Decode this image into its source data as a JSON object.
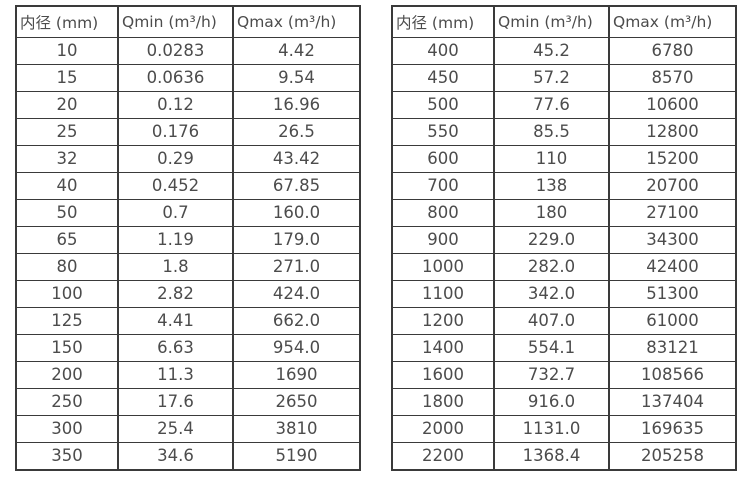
{
  "style": {
    "border_color": "#3a3a3a",
    "text_color": "#4c4c4c",
    "background": "#ffffff"
  },
  "tables": [
    {
      "name": "small-diameter-flow-spec-table",
      "headers": [
        "内径 (mm)",
        "Qmin (m³/h)",
        "Qmax (m³/h)"
      ],
      "rows": [
        [
          "10",
          "0.0283",
          "4.42"
        ],
        [
          "15",
          "0.0636",
          "9.54"
        ],
        [
          "20",
          "0.12",
          "16.96"
        ],
        [
          "25",
          "0.176",
          "26.5"
        ],
        [
          "32",
          "0.29",
          "43.42"
        ],
        [
          "40",
          "0.452",
          "67.85"
        ],
        [
          "50",
          "0.7",
          "160.0"
        ],
        [
          "65",
          "1.19",
          "179.0"
        ],
        [
          "80",
          "1.8",
          "271.0"
        ],
        [
          "100",
          "2.82",
          "424.0"
        ],
        [
          "125",
          "4.41",
          "662.0"
        ],
        [
          "150",
          "6.63",
          "954.0"
        ],
        [
          "200",
          "11.3",
          "1690"
        ],
        [
          "250",
          "17.6",
          "2650"
        ],
        [
          "300",
          "25.4",
          "3810"
        ],
        [
          "350",
          "34.6",
          "5190"
        ]
      ]
    },
    {
      "name": "large-diameter-flow-spec-table",
      "headers": [
        "内径 (mm)",
        "Qmin (m³/h)",
        "Qmax (m³/h)"
      ],
      "rows": [
        [
          "400",
          "45.2",
          "6780"
        ],
        [
          "450",
          "57.2",
          "8570"
        ],
        [
          "500",
          "77.6",
          "10600"
        ],
        [
          "550",
          "85.5",
          "12800"
        ],
        [
          "600",
          "110",
          "15200"
        ],
        [
          "700",
          "138",
          "20700"
        ],
        [
          "800",
          "180",
          "27100"
        ],
        [
          "900",
          "229.0",
          "34300"
        ],
        [
          "1000",
          "282.0",
          "42400"
        ],
        [
          "1100",
          "342.0",
          "51300"
        ],
        [
          "1200",
          "407.0",
          "61000"
        ],
        [
          "1400",
          "554.1",
          "83121"
        ],
        [
          "1600",
          "732.7",
          "108566"
        ],
        [
          "1800",
          "916.0",
          "137404"
        ],
        [
          "2000",
          "1131.0",
          "169635"
        ],
        [
          "2200",
          "1368.4",
          "205258"
        ]
      ]
    }
  ]
}
